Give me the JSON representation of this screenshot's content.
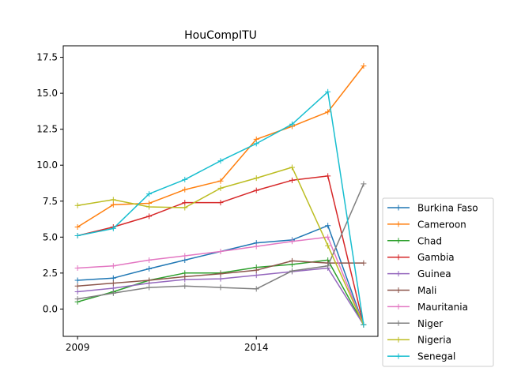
{
  "chart_data": {
    "type": "line",
    "title": "HouCompITU",
    "xlabel": "",
    "ylabel": "",
    "x": [
      2009,
      2010,
      2011,
      2012,
      2013,
      2014,
      2015,
      2016,
      2017
    ],
    "x_ticks": [
      2009,
      2014
    ],
    "x_tick_labels": [
      "2009",
      "2014"
    ],
    "y_ticks": [
      0.0,
      2.5,
      5.0,
      7.5,
      10.0,
      12.5,
      15.0,
      17.5
    ],
    "y_tick_labels": [
      "0.0",
      "2.5",
      "5.0",
      "7.5",
      "10.0",
      "12.5",
      "15.0",
      "17.5"
    ],
    "xlim": [
      2008.6,
      2017.4
    ],
    "ylim": [
      -1.9,
      18.3
    ],
    "grid": false,
    "legend_position": "right",
    "series": [
      {
        "name": "Burkina Faso",
        "color": "#1f77b4",
        "values": [
          2.0,
          2.15,
          2.8,
          3.4,
          4.0,
          4.6,
          4.8,
          5.8,
          -1.1
        ]
      },
      {
        "name": "Cameroon",
        "color": "#ff7f0e",
        "values": [
          5.7,
          7.25,
          7.35,
          8.3,
          8.9,
          11.8,
          12.7,
          13.7,
          16.9
        ]
      },
      {
        "name": "Chad",
        "color": "#2ca02c",
        "values": [
          0.5,
          1.2,
          2.0,
          2.5,
          2.5,
          2.9,
          3.1,
          3.4,
          -1.1
        ]
      },
      {
        "name": "Gambia",
        "color": "#d62728",
        "values": [
          5.1,
          5.7,
          6.45,
          7.4,
          7.4,
          8.25,
          8.95,
          9.25,
          -1.1
        ]
      },
      {
        "name": "Guinea",
        "color": "#9467bd",
        "values": [
          1.2,
          1.45,
          1.8,
          2.05,
          2.1,
          2.35,
          2.6,
          2.85,
          -1.1
        ]
      },
      {
        "name": "Mali",
        "color": "#8c564b",
        "values": [
          1.6,
          1.8,
          2.0,
          2.25,
          2.45,
          2.7,
          3.35,
          3.2,
          3.2
        ]
      },
      {
        "name": "Mauritania",
        "color": "#e377c2",
        "values": [
          2.85,
          3.0,
          3.4,
          3.7,
          4.0,
          4.35,
          4.7,
          5.0,
          -1.1
        ]
      },
      {
        "name": "Niger",
        "color": "#7f7f7f",
        "values": [
          0.7,
          1.1,
          1.5,
          1.6,
          1.5,
          1.4,
          2.65,
          3.0,
          8.7
        ]
      },
      {
        "name": "Nigeria",
        "color": "#bcbd22",
        "values": [
          7.2,
          7.6,
          7.1,
          7.05,
          8.4,
          9.1,
          9.85,
          4.4,
          -1.1
        ]
      },
      {
        "name": "Senegal",
        "color": "#17becf",
        "values": [
          5.1,
          5.6,
          8.0,
          9.0,
          10.3,
          11.5,
          12.85,
          15.1,
          -1.1
        ]
      }
    ]
  }
}
